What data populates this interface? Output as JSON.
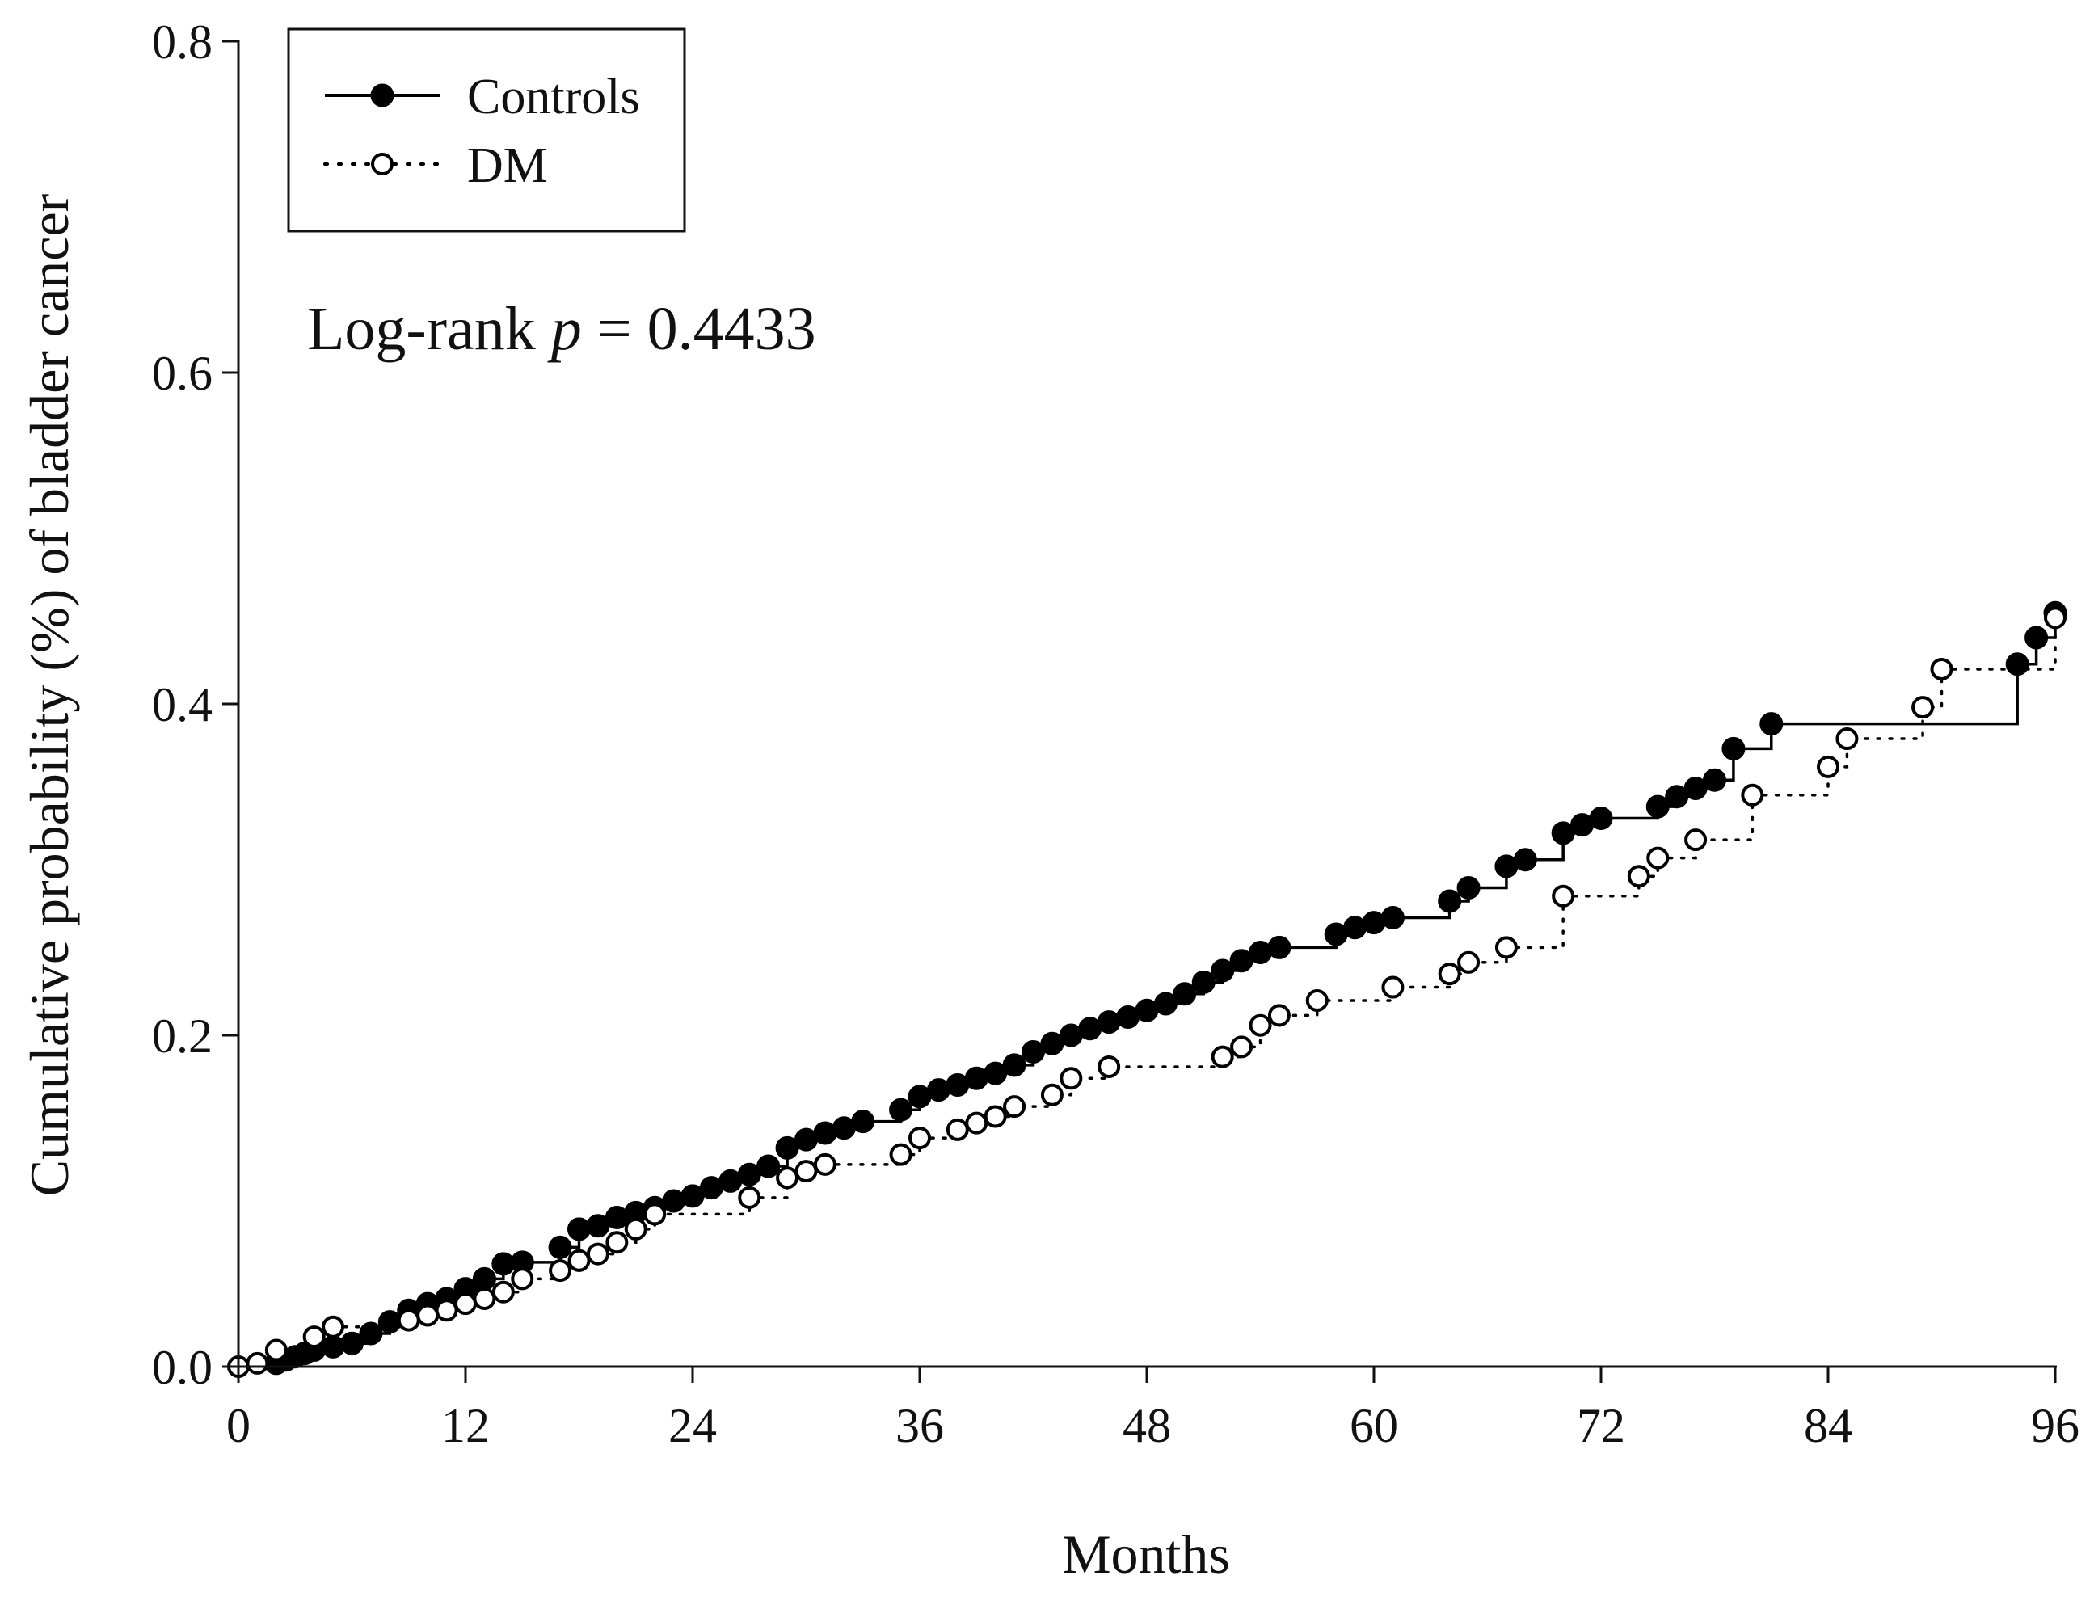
{
  "chart_data": {
    "type": "line",
    "xlabel": "Months",
    "ylabel": "Cumulative probability (%) of  bladder cancer",
    "xlim": [
      0,
      96
    ],
    "ylim": [
      0,
      0.8
    ],
    "x_ticks": [
      0,
      12,
      24,
      36,
      48,
      60,
      72,
      84,
      96
    ],
    "x_tick_labels": [
      "0",
      "12",
      "24",
      "36",
      "48",
      "60",
      "72",
      "84",
      "96"
    ],
    "y_ticks": [
      0.0,
      0.2,
      0.4,
      0.6,
      0.8
    ],
    "y_tick_labels": [
      "0.0",
      "0.2",
      "0.4",
      "0.6",
      "0.8"
    ],
    "grid": false,
    "legend_position": "top-left",
    "annotation": {
      "prefix": "Log-rank ",
      "italic": "p",
      "suffix": " = 0.4433"
    },
    "series": [
      {
        "name": "Controls",
        "line_style": "solid",
        "marker": "filled-circle",
        "color": "#000000",
        "x": [
          2,
          2.5,
          3,
          3.5,
          4,
          5,
          6,
          7,
          8,
          9,
          10,
          11,
          12,
          13,
          14,
          15,
          17,
          18,
          19,
          20,
          21,
          22,
          23,
          24,
          25,
          26,
          27,
          28,
          29,
          30,
          31,
          32,
          33,
          35,
          36,
          37,
          38,
          39,
          40,
          41,
          42,
          43,
          44,
          45,
          46,
          47,
          48,
          49,
          50,
          51,
          52,
          53,
          54,
          55,
          58,
          59,
          60,
          61,
          64,
          65,
          67,
          68,
          70,
          71,
          72,
          75,
          76,
          77,
          78,
          79,
          81,
          94,
          95,
          96
        ],
        "y": [
          0.002,
          0.004,
          0.006,
          0.008,
          0.01,
          0.012,
          0.014,
          0.02,
          0.027,
          0.034,
          0.038,
          0.041,
          0.047,
          0.053,
          0.062,
          0.063,
          0.072,
          0.083,
          0.085,
          0.09,
          0.093,
          0.096,
          0.1,
          0.103,
          0.108,
          0.112,
          0.116,
          0.121,
          0.132,
          0.137,
          0.141,
          0.144,
          0.148,
          0.155,
          0.163,
          0.167,
          0.17,
          0.174,
          0.177,
          0.182,
          0.19,
          0.195,
          0.2,
          0.204,
          0.208,
          0.211,
          0.215,
          0.219,
          0.225,
          0.232,
          0.239,
          0.245,
          0.25,
          0.253,
          0.261,
          0.265,
          0.268,
          0.271,
          0.281,
          0.289,
          0.302,
          0.306,
          0.322,
          0.327,
          0.331,
          0.338,
          0.344,
          0.349,
          0.354,
          0.373,
          0.388,
          0.424,
          0.44,
          0.455
        ]
      },
      {
        "name": "DM",
        "line_style": "dotted",
        "marker": "open-circle",
        "color": "#000000",
        "x": [
          0,
          1,
          2,
          4,
          5,
          9,
          10,
          11,
          12,
          13,
          14,
          15,
          17,
          18,
          19,
          20,
          21,
          22,
          27,
          29,
          30,
          31,
          35,
          36,
          38,
          39,
          40,
          41,
          43,
          44,
          46,
          52,
          53,
          54,
          55,
          57,
          61,
          64,
          65,
          67,
          70,
          74,
          75,
          77,
          80,
          84,
          85,
          89,
          90,
          96
        ],
        "y": [
          0.0,
          0.002,
          0.01,
          0.018,
          0.024,
          0.028,
          0.031,
          0.034,
          0.038,
          0.041,
          0.045,
          0.053,
          0.058,
          0.064,
          0.068,
          0.075,
          0.083,
          0.092,
          0.102,
          0.114,
          0.118,
          0.122,
          0.128,
          0.138,
          0.143,
          0.147,
          0.151,
          0.157,
          0.164,
          0.174,
          0.181,
          0.187,
          0.193,
          0.206,
          0.212,
          0.221,
          0.229,
          0.237,
          0.244,
          0.253,
          0.284,
          0.296,
          0.307,
          0.318,
          0.345,
          0.362,
          0.379,
          0.398,
          0.421,
          0.452
        ]
      }
    ]
  }
}
